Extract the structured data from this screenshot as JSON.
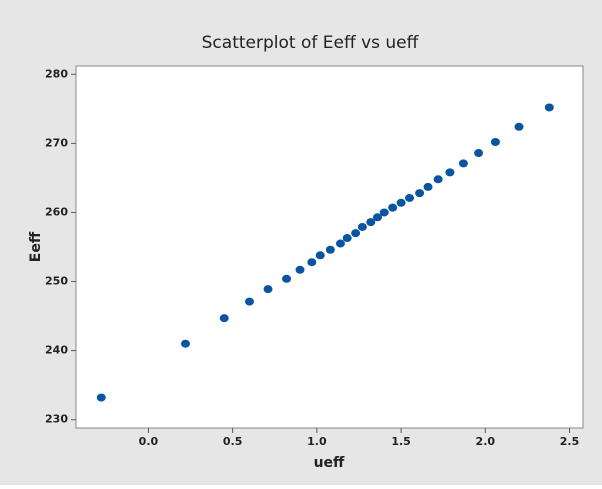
{
  "chart_data": {
    "type": "scatter",
    "title": "Scatterplot of Eeff vs ueff",
    "x_label": "ueff",
    "y_label": "Eeff",
    "color": "#0a55a0",
    "x": [
      -0.28,
      0.22,
      0.45,
      0.6,
      0.71,
      0.82,
      0.9,
      0.97,
      1.02,
      1.08,
      1.14,
      1.18,
      1.23,
      1.27,
      1.32,
      1.36,
      1.4,
      1.45,
      1.5,
      1.55,
      1.61,
      1.66,
      1.72,
      1.79,
      1.87,
      1.96,
      2.06,
      2.2,
      2.38
    ],
    "y": [
      233.2,
      241.0,
      244.7,
      247.1,
      248.9,
      250.4,
      251.7,
      252.8,
      253.8,
      254.6,
      255.5,
      256.3,
      257.0,
      257.9,
      258.6,
      259.3,
      260.0,
      260.7,
      261.4,
      262.1,
      262.8,
      263.7,
      264.8,
      265.8,
      267.1,
      268.6,
      270.2,
      272.4,
      275.2
    ],
    "xlim": [
      -0.43,
      2.58
    ],
    "ylim": [
      228.8,
      281.2
    ],
    "xticks": [
      {
        "value": 0,
        "label": "0.0"
      },
      {
        "value": 0.5,
        "label": "0.5"
      },
      {
        "value": 1,
        "label": "1.0"
      },
      {
        "value": 1.5,
        "label": "1.5"
      },
      {
        "value": 2,
        "label": "2.0"
      },
      {
        "value": 2.5,
        "label": "2.5"
      }
    ],
    "yticks": [
      230,
      240,
      250,
      260,
      270,
      280
    ]
  }
}
